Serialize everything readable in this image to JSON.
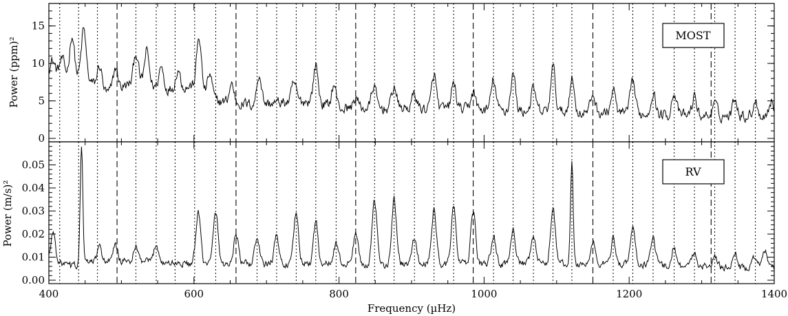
{
  "chart_data": {
    "type": "line",
    "xlabel": "Frequency (µHz)",
    "x_ticks": [
      400,
      600,
      800,
      1000,
      1200,
      1400
    ],
    "xlim": [
      400,
      1400
    ],
    "dotted_lines": [
      415,
      441,
      467,
      494,
      520,
      548,
      574,
      601,
      630,
      658,
      687,
      714,
      741,
      768,
      796,
      823,
      849,
      876,
      904,
      931,
      958,
      985,
      1013,
      1040,
      1068,
      1095,
      1121,
      1150,
      1178,
      1205,
      1233,
      1262,
      1290,
      1318,
      1346,
      1374
    ],
    "dashed_lines": [
      494,
      658,
      823,
      985,
      1150,
      1313
    ],
    "panels": [
      {
        "name": "MOST",
        "legend": "MOST",
        "ylabel": "Power (ppm)²",
        "ylim": [
          0,
          18
        ],
        "y_ticks": [
          {
            "v": 0,
            "t": "0"
          },
          {
            "v": 5,
            "t": "5"
          },
          {
            "v": 10,
            "t": "10"
          },
          {
            "v": 15,
            "t": "15"
          }
        ],
        "baseline": [
          [
            400,
            9
          ],
          [
            420,
            8.5
          ],
          [
            450,
            8
          ],
          [
            480,
            6
          ],
          [
            520,
            7.5
          ],
          [
            560,
            6.5
          ],
          [
            600,
            7
          ],
          [
            630,
            5
          ],
          [
            680,
            4.5
          ],
          [
            760,
            5
          ],
          [
            800,
            4
          ],
          [
            900,
            4
          ],
          [
            1000,
            3.8
          ],
          [
            1100,
            3.5
          ],
          [
            1200,
            3.3
          ],
          [
            1300,
            3
          ],
          [
            1400,
            3
          ]
        ],
        "peaks": [
          [
            405,
            1.5
          ],
          [
            418,
            2
          ],
          [
            432,
            5.5
          ],
          [
            448,
            6.5
          ],
          [
            470,
            3
          ],
          [
            492,
            3
          ],
          [
            520,
            4
          ],
          [
            535,
            4.5
          ],
          [
            555,
            3
          ],
          [
            578,
            2.5
          ],
          [
            607,
            7
          ],
          [
            622,
            3
          ],
          [
            652,
            2.5
          ],
          [
            690,
            4
          ],
          [
            738,
            2.5
          ],
          [
            768,
            5
          ],
          [
            793,
            3
          ],
          [
            823,
            1.5
          ],
          [
            848,
            3
          ],
          [
            876,
            3
          ],
          [
            904,
            2
          ],
          [
            931,
            4.5
          ],
          [
            958,
            3.5
          ],
          [
            985,
            2.5
          ],
          [
            1013,
            4
          ],
          [
            1040,
            5
          ],
          [
            1068,
            3
          ],
          [
            1095,
            6
          ],
          [
            1121,
            4.5
          ],
          [
            1150,
            2.5
          ],
          [
            1178,
            3
          ],
          [
            1205,
            4.5
          ],
          [
            1233,
            3
          ],
          [
            1262,
            3
          ],
          [
            1290,
            2.5
          ],
          [
            1318,
            1.5
          ],
          [
            1346,
            2.5
          ],
          [
            1374,
            2
          ],
          [
            1396,
            2
          ]
        ]
      },
      {
        "name": "RV",
        "legend": "RV",
        "ylabel": "Power (m/s)²",
        "ylim": [
          0,
          0.06
        ],
        "y_ticks": [
          {
            "v": 0,
            "t": "0.00"
          },
          {
            "v": 0.01,
            "t": "0.01"
          },
          {
            "v": 0.02,
            "t": "0.02"
          },
          {
            "v": 0.03,
            "t": "0.03"
          },
          {
            "v": 0.04,
            "t": "0.04"
          },
          {
            "v": 0.05,
            "t": "0.05"
          }
        ],
        "baseline": [
          [
            400,
            0.009
          ],
          [
            430,
            0.006
          ],
          [
            460,
            0.008
          ],
          [
            520,
            0.008
          ],
          [
            600,
            0.007
          ],
          [
            700,
            0.007
          ],
          [
            800,
            0.007
          ],
          [
            900,
            0.007
          ],
          [
            1000,
            0.007
          ],
          [
            1100,
            0.007
          ],
          [
            1200,
            0.007
          ],
          [
            1300,
            0.006
          ],
          [
            1400,
            0.005
          ]
        ],
        "peaks": [
          [
            406,
            0.012
          ],
          [
            445,
            0.052
          ],
          [
            470,
            0.006
          ],
          [
            492,
            0.007
          ],
          [
            520,
            0.006
          ],
          [
            548,
            0.008
          ],
          [
            606,
            0.022
          ],
          [
            630,
            0.023
          ],
          [
            658,
            0.013
          ],
          [
            687,
            0.011
          ],
          [
            714,
            0.012
          ],
          [
            741,
            0.022
          ],
          [
            768,
            0.018
          ],
          [
            796,
            0.009
          ],
          [
            823,
            0.014
          ],
          [
            849,
            0.027
          ],
          [
            876,
            0.028
          ],
          [
            904,
            0.011
          ],
          [
            931,
            0.024
          ],
          [
            958,
            0.025
          ],
          [
            985,
            0.023
          ],
          [
            1013,
            0.012
          ],
          [
            1040,
            0.016
          ],
          [
            1068,
            0.012
          ],
          [
            1095,
            0.025
          ],
          [
            1121,
            0.045
          ],
          [
            1150,
            0.009
          ],
          [
            1178,
            0.011
          ],
          [
            1205,
            0.016
          ],
          [
            1233,
            0.012
          ],
          [
            1262,
            0.008
          ],
          [
            1290,
            0.006
          ],
          [
            1318,
            0.004
          ],
          [
            1346,
            0.006
          ],
          [
            1374,
            0.005
          ],
          [
            1388,
            0.008
          ]
        ]
      }
    ]
  }
}
